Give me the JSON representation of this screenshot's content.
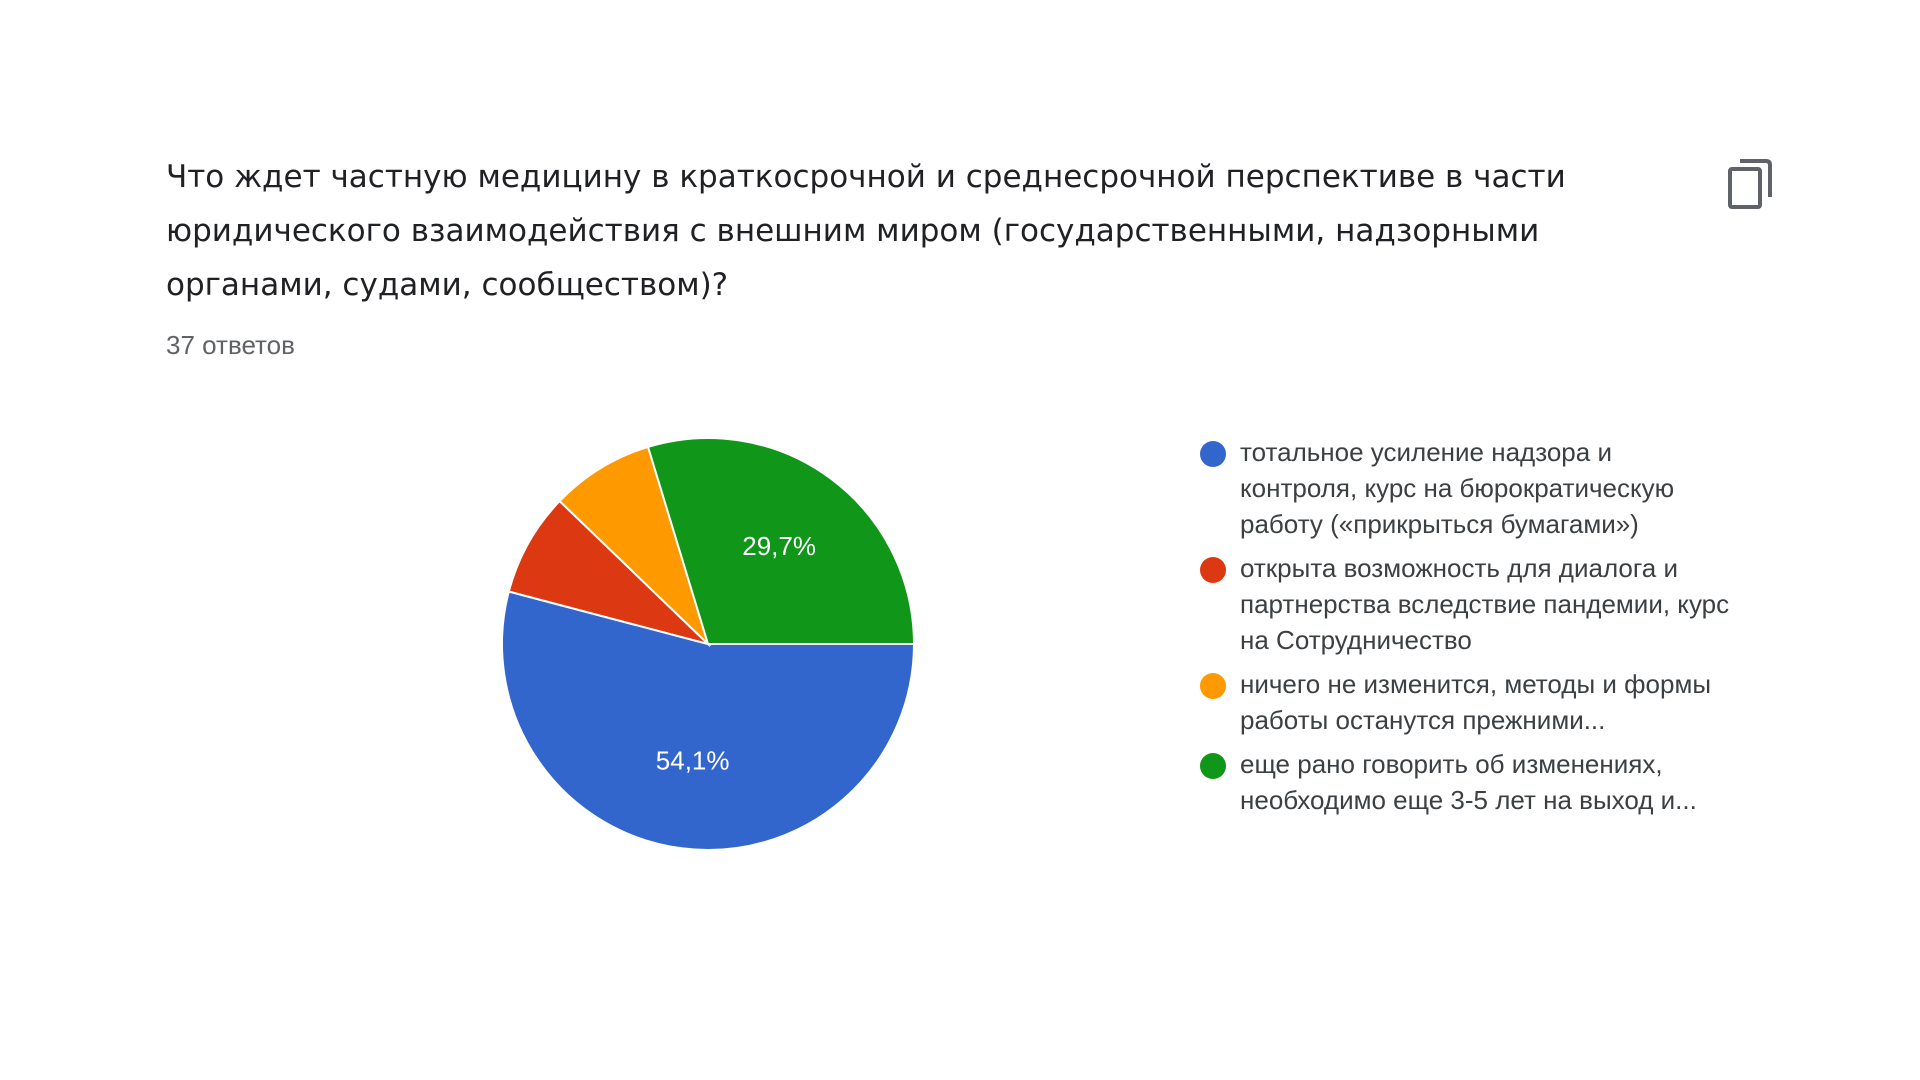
{
  "question": {
    "title": "Что ждет частную медицину в краткосрочной и среднесрочной перспективе в части юридического взаимодействия с внешним миром (государственными, надзорными органами, судами, сообществом)?",
    "responses": "37 ответов",
    "copy_icon": "copy-icon"
  },
  "chart_data": {
    "type": "pie",
    "title": "",
    "slices": [
      {
        "label": "тотальное усиление надзора и контроля, курс на бюрократическую работу («прикрыться бумагами»)",
        "value": 54.1,
        "display": "54,1%",
        "color": "#3366cc"
      },
      {
        "label": "открыта возможность для диалога и партнерства вследствие пандемии, курс на Сотрудничество",
        "value": 8.1,
        "display": "",
        "color": "#dc3912"
      },
      {
        "label": "ничего не изменится, методы и формы работы останутся прежними...",
        "value": 8.1,
        "display": "",
        "color": "#ff9900"
      },
      {
        "label": "еще рано говорить об изменениях, необходимо еще 3-5 лет на выход и...",
        "value": 29.7,
        "display": "29,7%",
        "color": "#109618"
      }
    ],
    "legend_position": "right"
  }
}
